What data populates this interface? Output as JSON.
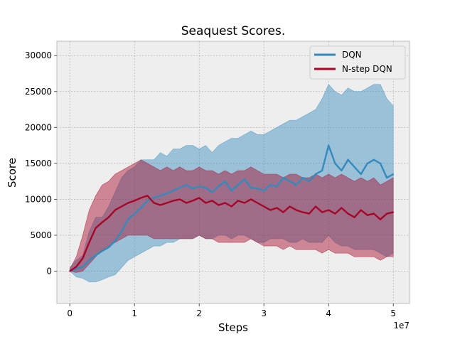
{
  "chart_data": {
    "type": "line",
    "title": "Seaquest Scores.",
    "xlabel": "Steps",
    "ylabel": "Score",
    "x_multiplier_label": "1e7",
    "xlim": [
      -0.2,
      5.25
    ],
    "ylim": [
      -4500,
      32000
    ],
    "x_ticks": [
      0,
      1,
      2,
      3,
      4,
      5
    ],
    "x_tick_labels": [
      "0",
      "1",
      "2",
      "3",
      "4",
      "5"
    ],
    "y_ticks": [
      0,
      5000,
      10000,
      15000,
      20000,
      25000,
      30000
    ],
    "y_tick_labels": [
      "0",
      "5000",
      "10000",
      "15000",
      "20000",
      "25000",
      "30000"
    ],
    "grid": true,
    "legend_position": "top-right",
    "colors": {
      "background": "#eeeeee",
      "grid": "#b2b2b2"
    },
    "series": [
      {
        "name": "DQN",
        "color": "#348abd",
        "x": [
          0,
          0.1,
          0.2,
          0.3,
          0.4,
          0.5,
          0.6,
          0.7,
          0.8,
          0.9,
          1.0,
          1.1,
          1.2,
          1.3,
          1.4,
          1.5,
          1.6,
          1.7,
          1.8,
          1.9,
          2.0,
          2.1,
          2.2,
          2.3,
          2.4,
          2.5,
          2.6,
          2.7,
          2.8,
          2.9,
          3.0,
          3.1,
          3.2,
          3.3,
          3.4,
          3.5,
          3.6,
          3.7,
          3.8,
          3.9,
          4.0,
          4.1,
          4.2,
          4.3,
          4.4,
          4.5,
          4.6,
          4.7,
          4.8,
          4.9,
          5.0
        ],
        "values": [
          0,
          300,
          600,
          1500,
          2200,
          2800,
          3300,
          4200,
          5500,
          7200,
          8000,
          8800,
          9800,
          10200,
          10500,
          10800,
          11200,
          11600,
          12000,
          11500,
          11800,
          11600,
          11000,
          11800,
          12500,
          11200,
          12000,
          12800,
          11600,
          11500,
          11200,
          12000,
          11800,
          13000,
          12500,
          12000,
          13000,
          12500,
          13500,
          14000,
          17500,
          15000,
          14000,
          15500,
          14500,
          13500,
          15000,
          15500,
          15000,
          13000,
          13500
        ],
        "upper": [
          500,
          1500,
          2200,
          5500,
          7500,
          7500,
          9000,
          11000,
          13000,
          14000,
          14500,
          15500,
          15500,
          15500,
          16500,
          16000,
          17000,
          17000,
          17500,
          17500,
          17000,
          17500,
          16500,
          17500,
          18000,
          18500,
          18500,
          19000,
          19500,
          19000,
          19000,
          19500,
          20000,
          20500,
          21000,
          21000,
          21500,
          22000,
          22500,
          24000,
          26000,
          25000,
          24500,
          25500,
          25000,
          25000,
          25500,
          26000,
          26000,
          24000,
          23000
        ],
        "lower": [
          0,
          -800,
          -1000,
          -1500,
          -1500,
          -1200,
          -800,
          -500,
          500,
          1500,
          2000,
          2500,
          3000,
          3500,
          3500,
          4000,
          4000,
          4500,
          4500,
          4500,
          5000,
          4500,
          4500,
          5000,
          5000,
          4500,
          5000,
          5000,
          4500,
          4000,
          4000,
          4500,
          4500,
          4500,
          4000,
          4000,
          4500,
          4000,
          4000,
          4000,
          5000,
          4000,
          3500,
          3500,
          3000,
          3000,
          3000,
          3000,
          2500,
          2000,
          2500
        ]
      },
      {
        "name": "N-step DQN",
        "color": "#a60628",
        "x": [
          0,
          0.1,
          0.2,
          0.3,
          0.4,
          0.5,
          0.6,
          0.7,
          0.8,
          0.9,
          1.0,
          1.1,
          1.2,
          1.3,
          1.4,
          1.5,
          1.6,
          1.7,
          1.8,
          1.9,
          2.0,
          2.1,
          2.2,
          2.3,
          2.4,
          2.5,
          2.6,
          2.7,
          2.8,
          2.9,
          3.0,
          3.1,
          3.2,
          3.3,
          3.4,
          3.5,
          3.6,
          3.7,
          3.8,
          3.9,
          4.0,
          4.1,
          4.2,
          4.3,
          4.4,
          4.5,
          4.6,
          4.7,
          4.8,
          4.9,
          5.0
        ],
        "values": [
          0,
          600,
          1800,
          4000,
          6000,
          6800,
          7500,
          8500,
          9000,
          9500,
          9800,
          10200,
          10500,
          9500,
          9200,
          9500,
          9800,
          10000,
          9500,
          9800,
          10200,
          9500,
          9800,
          9200,
          9500,
          9000,
          9800,
          9500,
          10000,
          9500,
          9000,
          8500,
          8800,
          8200,
          9000,
          8500,
          8200,
          8000,
          9000,
          8200,
          8500,
          8000,
          8800,
          8000,
          7500,
          8500,
          7800,
          8000,
          7200,
          8000,
          8200
        ],
        "upper": [
          300,
          2000,
          5000,
          8500,
          10500,
          12000,
          12500,
          13500,
          14000,
          14500,
          15000,
          15500,
          15000,
          14500,
          14000,
          14500,
          14000,
          14500,
          14000,
          14000,
          14500,
          14000,
          14000,
          13500,
          14000,
          13500,
          14000,
          14000,
          14500,
          14000,
          13500,
          13500,
          13500,
          13000,
          13500,
          13500,
          13000,
          13000,
          13500,
          13000,
          13500,
          13000,
          13500,
          13000,
          12500,
          13000,
          12500,
          13000,
          12000,
          12500,
          13000
        ],
        "lower": [
          0,
          -200,
          0,
          1000,
          2000,
          3000,
          3500,
          4000,
          4500,
          5000,
          5000,
          5000,
          5000,
          4500,
          4500,
          4500,
          4500,
          4500,
          4500,
          4500,
          5000,
          4500,
          4500,
          4000,
          4000,
          4000,
          4000,
          4000,
          4500,
          4000,
          3500,
          3500,
          3500,
          3000,
          3500,
          3000,
          3000,
          3000,
          3000,
          2500,
          3000,
          2500,
          2500,
          2500,
          2000,
          2000,
          2000,
          2000,
          1500,
          2000,
          2000
        ]
      }
    ]
  }
}
